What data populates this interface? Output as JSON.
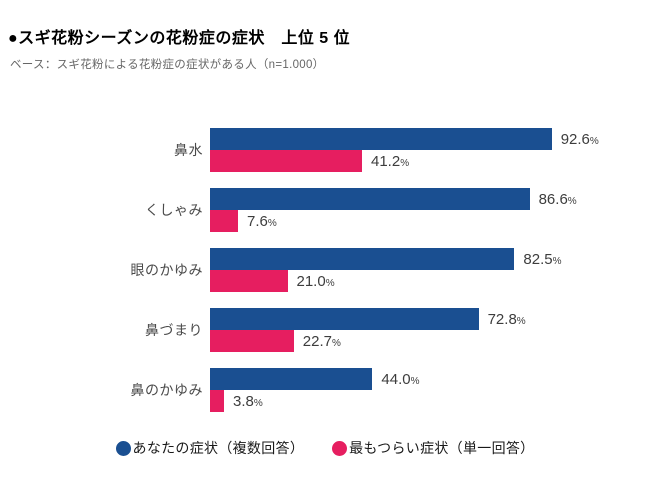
{
  "page": {
    "background": "#ffffff"
  },
  "header": {
    "title": "●スギ花粉シーズンの花粉症の症状　上位 5 位",
    "subtitle": "ベース：スギ花粉による花粉症の症状がある人（n=1.000）"
  },
  "chart_data": {
    "type": "bar",
    "orientation": "horizontal",
    "title": "スギ花粉シーズンの花粉症の症状　上位 5 位",
    "subtitle": "ベース：スギ花粉による花粉症の症状がある人（n=1.000）",
    "categories": [
      "鼻水",
      "くしゃみ",
      "眼のかゆみ",
      "鼻づまり",
      "鼻のかゆみ"
    ],
    "series": [
      {
        "name": "あなたの症状（複数回答）",
        "color": "#1a4f91",
        "values": [
          92.6,
          86.6,
          82.5,
          72.8,
          44.0
        ]
      },
      {
        "name": "最もつらい症状（単一回答）",
        "color": "#e61e60",
        "values": [
          41.2,
          7.6,
          21.0,
          22.7,
          3.8
        ]
      }
    ],
    "value_suffix": "%",
    "value_label_decimals": 1,
    "xlim": [
      0,
      100
    ],
    "grid": false,
    "legend_position": "bottom"
  },
  "legend": {
    "items": [
      {
        "label": "あなたの症状（複数回答）",
        "color": "#1a4f91"
      },
      {
        "label": "最もつらい症状（単一回答）",
        "color": "#e61e60"
      }
    ]
  },
  "colors": {
    "series_blue": "#1a4f91",
    "series_pink": "#e61e60",
    "title_text": "#000000",
    "subtitle_text": "#666666",
    "value_label_text": "#3d3d3d",
    "category_text": "#4a4a4a"
  }
}
